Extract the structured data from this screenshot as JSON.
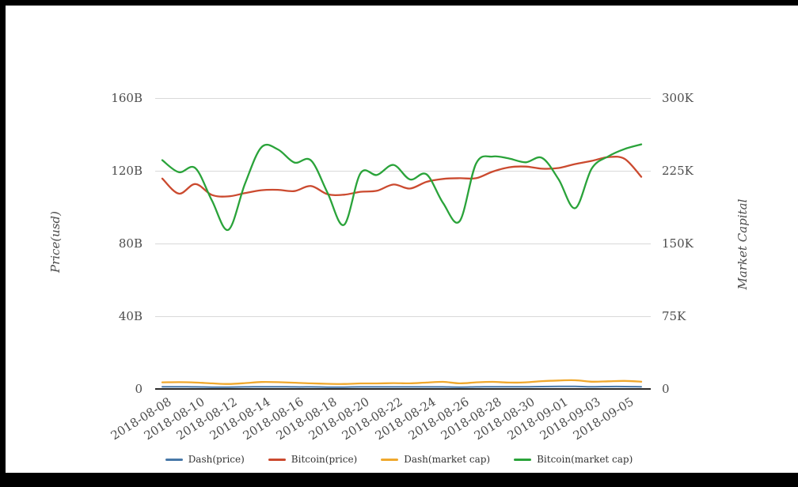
{
  "chart_data": {
    "type": "line",
    "smooth": true,
    "grid": true,
    "legend_position": "bottom",
    "x": [
      "2018-08-08",
      "2018-08-09",
      "2018-08-10",
      "2018-08-11",
      "2018-08-12",
      "2018-08-13",
      "2018-08-14",
      "2018-08-15",
      "2018-08-16",
      "2018-08-17",
      "2018-08-18",
      "2018-08-19",
      "2018-08-20",
      "2018-08-21",
      "2018-08-22",
      "2018-08-23",
      "2018-08-24",
      "2018-08-25",
      "2018-08-26",
      "2018-08-27",
      "2018-08-28",
      "2018-08-29",
      "2018-08-30",
      "2018-08-31",
      "2018-09-01",
      "2018-09-02",
      "2018-09-03",
      "2018-09-04",
      "2018-09-05",
      "2018-09-06"
    ],
    "x_tick_labels_shown": [
      "2018-08-08",
      "2018-08-10",
      "2018-08-12",
      "2018-08-14",
      "2018-08-16",
      "2018-08-18",
      "2018-08-20",
      "2018-08-22",
      "2018-08-24",
      "2018-08-26",
      "2018-08-28",
      "2018-08-30",
      "2018-09-01",
      "2018-09-03",
      "2018-09-05"
    ],
    "left_axis": {
      "title": "Price(usd)",
      "unit": "B",
      "range": [
        0,
        160
      ],
      "tick_values": [
        0,
        40,
        80,
        120,
        160
      ],
      "tick_labels": [
        "0",
        "40B",
        "80B",
        "120B",
        "160B"
      ]
    },
    "right_axis": {
      "title": "Market Capital",
      "unit": "K",
      "range": [
        0,
        300
      ],
      "tick_values": [
        0,
        75,
        150,
        225,
        300
      ],
      "tick_labels": [
        "0",
        "75K",
        "150K",
        "225K",
        "300K"
      ]
    },
    "series": [
      {
        "name": "Dash(price)",
        "axis": "left",
        "color": "#4878a8",
        "width": 2,
        "values": [
          1.0,
          1.0,
          0.9,
          0.8,
          0.8,
          0.9,
          1.0,
          1.0,
          0.9,
          0.9,
          0.8,
          0.8,
          0.9,
          0.9,
          0.9,
          0.9,
          0.9,
          0.9,
          0.8,
          0.9,
          1.0,
          1.0,
          1.0,
          1.1,
          1.2,
          1.2,
          1.0,
          1.1,
          1.1,
          1.0
        ]
      },
      {
        "name": "Bitcoin(price)",
        "axis": "left",
        "color": "#cb4a2f",
        "width": 2.3,
        "values": [
          115.5,
          107.2,
          112.5,
          106.5,
          105.7,
          107.5,
          109.1,
          109.3,
          108.6,
          111.4,
          106.9,
          106.6,
          108.2,
          108.8,
          112.2,
          110.0,
          113.7,
          115.3,
          115.7,
          115.7,
          119.3,
          121.7,
          122.1,
          120.9,
          121.3,
          123.5,
          125.2,
          127.3,
          126.3,
          116.5
        ]
      },
      {
        "name": "Dash(market cap)",
        "axis": "right",
        "color": "#efa82d",
        "width": 2.3,
        "values": [
          6.4,
          6.6,
          6.2,
          5.4,
          4.7,
          5.6,
          6.8,
          6.6,
          6.0,
          5.4,
          4.9,
          4.7,
          5.3,
          5.3,
          5.6,
          5.4,
          6.2,
          6.9,
          5.4,
          6.4,
          6.9,
          6.2,
          6.4,
          7.7,
          8.3,
          8.6,
          7.1,
          7.5,
          7.9,
          7.1
        ]
      },
      {
        "name": "Bitcoin(market cap)",
        "axis": "right",
        "color": "#2aa33a",
        "width": 2.3,
        "values": [
          235.5,
          223.1,
          227.4,
          194.1,
          163.7,
          210.9,
          248.8,
          246.6,
          233.1,
          235.3,
          202.1,
          168.8,
          222.0,
          220.3,
          230.6,
          215.6,
          220.9,
          191.3,
          172.5,
          232.1,
          239.3,
          237.2,
          233.3,
          237.8,
          215.6,
          186.0,
          226.9,
          239.4,
          247.1,
          251.8
        ]
      }
    ]
  },
  "legend": {
    "items": [
      {
        "label": "Dash(price)",
        "color": "#4878a8"
      },
      {
        "label": "Bitcoin(price)",
        "color": "#cb4a2f"
      },
      {
        "label": "Dash(market cap)",
        "color": "#efa82d"
      },
      {
        "label": "Bitcoin(market cap)",
        "color": "#2aa33a"
      }
    ]
  },
  "colors": {
    "grid": "#d9d9d9",
    "axis_line": "#2b2b2b",
    "tick_text": "#4d4d4d",
    "background": "#ffffff",
    "frame": "#000000"
  }
}
